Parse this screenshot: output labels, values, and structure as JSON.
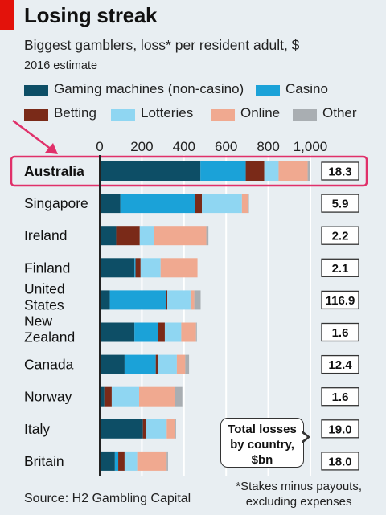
{
  "header": {
    "title": "Losing streak",
    "subtitle": "Biggest gamblers, loss* per resident adult, $",
    "note": "2016 estimate"
  },
  "legend": [
    {
      "label": "Gaming machines ",
      "sub": "(non-casino)",
      "color": "#0d4e66"
    },
    {
      "label": "Casino",
      "sub": "",
      "color": "#1ba2d8"
    },
    {
      "label": "Betting",
      "sub": "",
      "color": "#7a2a18"
    },
    {
      "label": "Lotteries",
      "sub": "",
      "color": "#8fd6f2"
    },
    {
      "label": "Online",
      "sub": "",
      "color": "#f0a990"
    },
    {
      "label": "Other",
      "sub": "",
      "color": "#a9aeb2"
    }
  ],
  "callout": {
    "line1": "Total losses",
    "line2": "by country,",
    "line3": "$bn"
  },
  "source": "Source: H2 Gambling Capital",
  "footnote": {
    "line1": "*Stakes minus payouts,",
    "line2": "excluding expenses"
  },
  "highlight_color": "#e0306a",
  "chart_data": {
    "type": "bar",
    "orientation": "horizontal",
    "stacked": true,
    "xlim": [
      0,
      1000
    ],
    "xticks": [
      "0",
      "200",
      "400",
      "600",
      "800",
      "1,000"
    ],
    "tick_values": [
      0,
      200,
      400,
      600,
      800,
      1000
    ],
    "categories": [
      [
        "Australia"
      ],
      [
        "Singapore"
      ],
      [
        "Ireland"
      ],
      [
        "Finland"
      ],
      [
        "United",
        "States"
      ],
      [
        "New",
        "Zealand"
      ],
      [
        "Canada"
      ],
      [
        "Norway"
      ],
      [
        "Italy"
      ],
      [
        "Britain"
      ]
    ],
    "highlight_index": 0,
    "series": [
      {
        "name": "Gaming machines (non-casino)",
        "color": "#0d4e66",
        "values": [
          478,
          98,
          78,
          165,
          48,
          165,
          118,
          22,
          205,
          72
        ]
      },
      {
        "name": "Casino",
        "color": "#1ba2d8",
        "values": [
          215,
          355,
          0,
          5,
          265,
          112,
          148,
          0,
          0,
          16
        ]
      },
      {
        "name": "Betting",
        "color": "#7a2a18",
        "values": [
          88,
          32,
          112,
          24,
          8,
          32,
          12,
          35,
          15,
          30
        ]
      },
      {
        "name": "Lotteries",
        "color": "#8fd6f2",
        "values": [
          68,
          190,
          68,
          95,
          110,
          78,
          88,
          130,
          98,
          60
        ]
      },
      {
        "name": "Online",
        "color": "#f0a990",
        "values": [
          138,
          30,
          248,
          175,
          18,
          70,
          40,
          170,
          40,
          140
        ]
      },
      {
        "name": "Other",
        "color": "#a9aeb2",
        "values": [
          10,
          3,
          10,
          0,
          30,
          4,
          18,
          35,
          4,
          6
        ]
      }
    ],
    "totals_bn": [
      "18.3",
      "5.9",
      "2.2",
      "2.1",
      "116.9",
      "1.6",
      "12.4",
      "1.6",
      "19.0",
      "18.0"
    ]
  }
}
